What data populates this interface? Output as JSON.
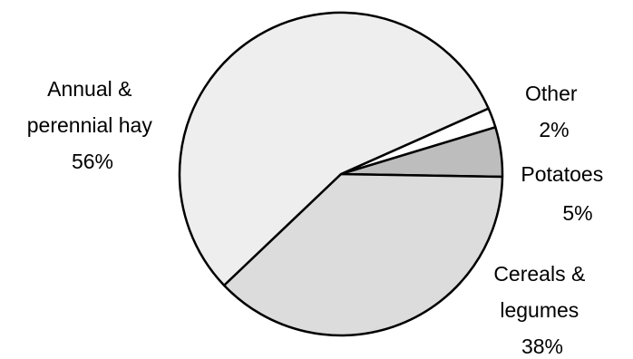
{
  "chart_data": {
    "type": "pie",
    "title": "",
    "slices": [
      {
        "label": "Other",
        "value": 2,
        "value_label": "2%",
        "color": "#ffffff"
      },
      {
        "label": "Potatoes",
        "value": 5,
        "value_label": "5%",
        "color": "#bdbdbd"
      },
      {
        "label": "Cereals & legumes",
        "value": 38,
        "value_label": "38%",
        "color": "#dcdcdc"
      },
      {
        "label": "Annual & perennial hay",
        "value": 56,
        "value_label": "56%",
        "color": "#eeeeee"
      }
    ],
    "label_lines": {
      "other": [
        "Other"
      ],
      "potatoes": [
        "Potatoes"
      ],
      "cereals": [
        "Cereals &",
        "legumes"
      ],
      "hay": [
        "Annual &",
        "perennial hay"
      ]
    },
    "legend": "none"
  }
}
